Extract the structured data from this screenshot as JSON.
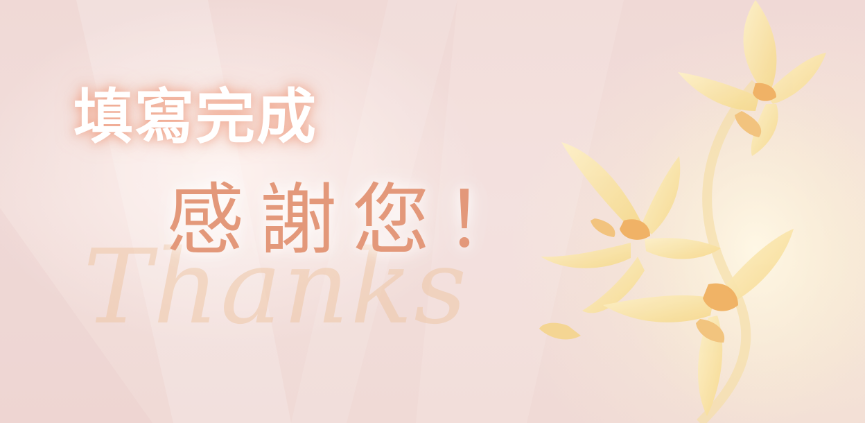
{
  "heading": "填寫完成",
  "subheading": "感謝您！",
  "script_text": "Thanks",
  "colors": {
    "background": "#f2dcda",
    "heading_glow": "#ee9678",
    "subheading": "#e3987a",
    "petal": "#fbe7b0",
    "petal_center": "#f0b060"
  },
  "icons": [
    "orchid-flower-icon"
  ]
}
